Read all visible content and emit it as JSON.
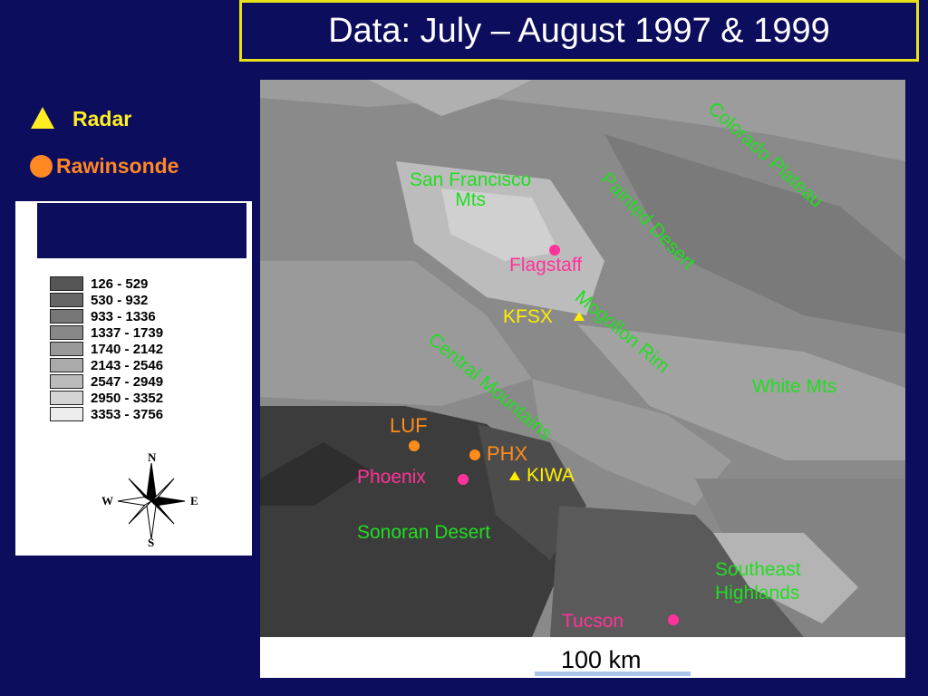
{
  "title": "Data: July – August 1997 & 1999",
  "legend": {
    "radar_label": "Radar",
    "rawinsonde_label": "Rawinsonde",
    "radar_color": "#ffee22",
    "rawinsonde_color": "#ff8822"
  },
  "elevation_classes": [
    {
      "range": "126 - 529",
      "color": "#555555"
    },
    {
      "range": "530 - 932",
      "color": "#666666"
    },
    {
      "range": "933 - 1336",
      "color": "#777777"
    },
    {
      "range": "1337 - 1739",
      "color": "#888888"
    },
    {
      "range": "1740 - 2142",
      "color": "#999999"
    },
    {
      "range": "2143 - 2546",
      "color": "#aaaaaa"
    },
    {
      "range": "2547 - 2949",
      "color": "#bbbbbb"
    },
    {
      "range": "2950 - 3352",
      "color": "#d4d4d4"
    },
    {
      "range": "3353 - 3756",
      "color": "#ededed"
    }
  ],
  "compass": {
    "n": "N",
    "s": "S",
    "e": "E",
    "w": "W"
  },
  "map": {
    "regions": {
      "colorado_plateau": "Colorado Plateau",
      "san_francisco_mts": "San Francisco\nMts",
      "painted_desert": "Painted Desert",
      "mogollon_rim": "Mogollon   Rim",
      "white_mts": "White Mts",
      "central_mountains": "Central   Mountains",
      "sonoran_desert": "Sonoran Desert",
      "southeast_highlands": "Southeast\nHighlands"
    },
    "cities": {
      "flagstaff": "Flagstaff",
      "phoenix": "Phoenix",
      "tucson": "Tucson"
    },
    "stations": {
      "kfsx": "KFSX",
      "kiwa": "KIWA",
      "luf": "LUF",
      "phx": "PHX"
    },
    "scale": "100 km"
  }
}
